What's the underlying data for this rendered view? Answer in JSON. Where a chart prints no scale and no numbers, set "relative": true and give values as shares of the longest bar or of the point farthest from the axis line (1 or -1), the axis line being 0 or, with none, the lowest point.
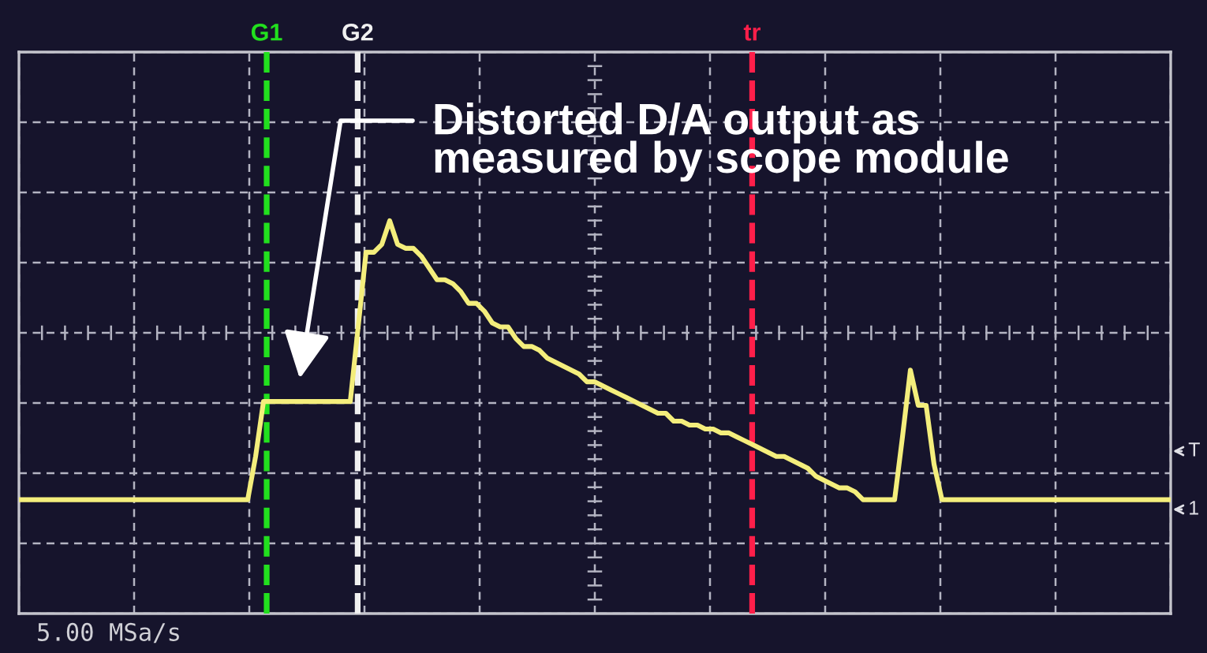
{
  "chart_data": {
    "type": "line",
    "relative": true,
    "grid": true,
    "color": "#f4ee7c",
    "categories": [
      null,
      null,
      null,
      null,
      null,
      null,
      null,
      null,
      null,
      null,
      null,
      null,
      null,
      null,
      null,
      null,
      null,
      null,
      null,
      null,
      null,
      null,
      null,
      null,
      null,
      null,
      null,
      null,
      null,
      null,
      null,
      null,
      null,
      null,
      null,
      null,
      null,
      null,
      null,
      null,
      null,
      null,
      null,
      null,
      null,
      null,
      null,
      null,
      null,
      null,
      null,
      null,
      null,
      null,
      null,
      null,
      null,
      null,
      null,
      null,
      null,
      null,
      null,
      null,
      null,
      null,
      null,
      null,
      null,
      null,
      null,
      null,
      null,
      null,
      null,
      null,
      null,
      null,
      null,
      null,
      null,
      null,
      null,
      null,
      null,
      null,
      null,
      null,
      null,
      null,
      null,
      null,
      null,
      null,
      null,
      null,
      null,
      null,
      null,
      null,
      null,
      null,
      null,
      null,
      null,
      null,
      null,
      null,
      null,
      null,
      null,
      null,
      null,
      null,
      null,
      null,
      null,
      null,
      null,
      null,
      null,
      null,
      null,
      null,
      null,
      null,
      null,
      null,
      null,
      null,
      null,
      null,
      null,
      null,
      null,
      null,
      null,
      null,
      null,
      null,
      null,
      null,
      null,
      null,
      null,
      null,
      null
    ],
    "values": [
      0.29,
      0.29,
      0.29,
      0.29,
      0.29,
      0.29,
      0.29,
      0.29,
      0.29,
      0.29,
      0.29,
      0.29,
      0.29,
      0.29,
      0.29,
      0.29,
      0.29,
      0.29,
      0.29,
      0.29,
      0.29,
      0.29,
      0.29,
      0.29,
      0.29,
      0.29,
      0.29,
      0.29,
      0.29,
      0.29,
      0.4,
      0.54,
      0.54,
      0.54,
      0.54,
      0.54,
      0.54,
      0.54,
      0.54,
      0.54,
      0.54,
      0.54,
      0.54,
      0.73,
      0.92,
      0.92,
      0.94,
      1,
      0.94,
      0.93,
      0.93,
      0.91,
      0.88,
      0.85,
      0.85,
      0.84,
      0.82,
      0.79,
      0.79,
      0.77,
      0.74,
      0.73,
      0.73,
      0.7,
      0.68,
      0.68,
      0.67,
      0.65,
      0.64,
      0.63,
      0.62,
      0.61,
      0.59,
      0.59,
      0.58,
      0.57,
      0.56,
      0.55,
      0.54,
      0.53,
      0.52,
      0.51,
      0.51,
      0.49,
      0.49,
      0.48,
      0.48,
      0.47,
      0.47,
      0.46,
      0.46,
      0.45,
      0.44,
      0.43,
      0.42,
      0.41,
      0.4,
      0.4,
      0.39,
      0.38,
      0.37,
      0.35,
      0.34,
      0.33,
      0.32,
      0.32,
      0.31,
      0.29,
      0.29,
      0.29,
      0.29,
      0.29,
      0.45,
      0.62,
      0.53,
      0.53,
      0.38,
      0.29,
      0.29,
      0.29,
      0.29,
      0.29,
      0.29,
      0.29,
      0.29,
      0.29,
      0.29,
      0.29,
      0.29,
      0.29,
      0.29,
      0.29,
      0.29,
      0.29,
      0.29,
      0.29,
      0.29,
      0.29,
      0.29,
      0.29,
      0.29,
      0.29,
      0.29,
      0.29,
      0.29,
      0.29,
      0.29
    ],
    "annotations": [
      "Distorted D/A output as\nmeasured by scope module",
      "G1",
      "G2",
      "tr",
      "T",
      "1",
      "5.00 MSa/s"
    ]
  }
}
